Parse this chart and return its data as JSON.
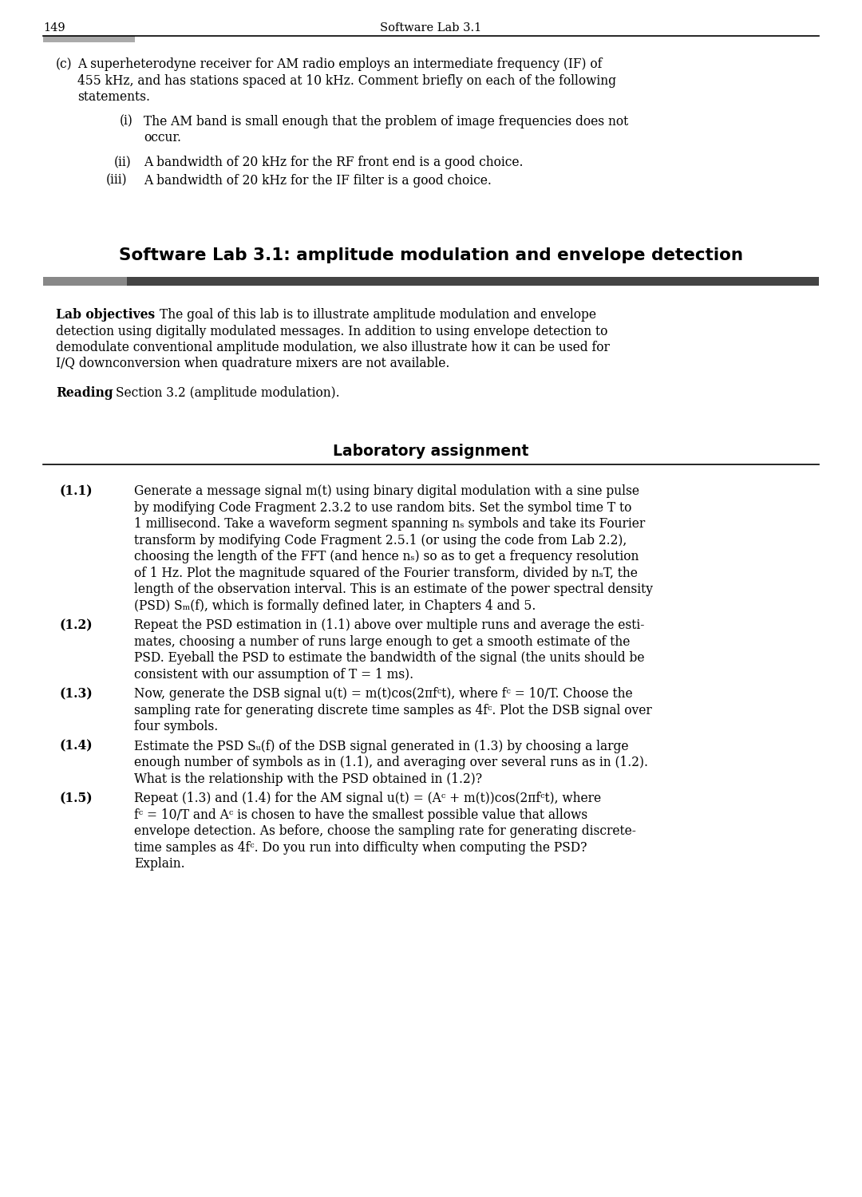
{
  "page_number": "149",
  "header_title": "Software Lab 3.1",
  "background_color": "#ffffff",
  "text_color": "#000000",
  "gray_block_color": "#999999",
  "dark_bar_color": "#444444",
  "section_title": "Software Lab 3.1: amplitude modulation and envelope detection"
}
